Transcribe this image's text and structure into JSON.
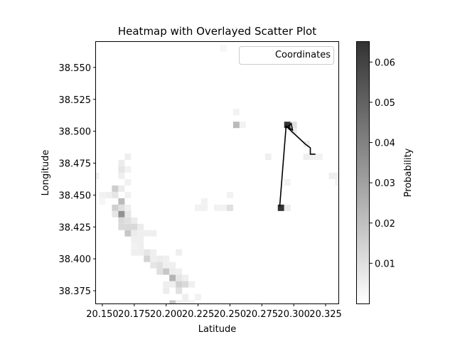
{
  "chart_data": {
    "type": "heatmap",
    "title": "Heatmap with Overlayed Scatter Plot",
    "xlabel": "Latitude",
    "ylabel": "Longitude",
    "xlim": [
      20.145,
      20.335
    ],
    "ylim": [
      38.365,
      38.57
    ],
    "x_ticks": [
      20.15,
      20.175,
      20.2,
      20.225,
      20.25,
      20.275,
      20.3,
      20.325
    ],
    "x_tick_labels": [
      "20.150",
      "20.175",
      "20.200",
      "20.225",
      "20.250",
      "20.275",
      "20.300",
      "20.325"
    ],
    "y_ticks": [
      38.375,
      38.4,
      38.425,
      38.45,
      38.475,
      38.5,
      38.525,
      38.55
    ],
    "y_tick_labels": [
      "38.375",
      "38.400",
      "38.425",
      "38.450",
      "38.475",
      "38.500",
      "38.525",
      "38.550"
    ],
    "cell_size": [
      0.005,
      0.005
    ],
    "cells": [
      [
        20.245,
        38.565,
        0.003
      ],
      [
        20.255,
        38.515,
        0.004
      ],
      [
        20.255,
        38.505,
        0.022
      ],
      [
        20.26,
        38.505,
        0.004
      ],
      [
        20.295,
        38.505,
        0.065
      ],
      [
        20.3,
        38.505,
        0.01
      ],
      [
        20.3,
        38.5,
        0.006
      ],
      [
        20.31,
        38.49,
        0.006
      ],
      [
        20.31,
        38.48,
        0.005
      ],
      [
        20.315,
        38.48,
        0.004
      ],
      [
        20.32,
        38.48,
        0.004
      ],
      [
        20.28,
        38.48,
        0.005
      ],
      [
        20.295,
        38.46,
        0.004
      ],
      [
        20.33,
        38.465,
        0.005
      ],
      [
        20.335,
        38.465,
        0.005
      ],
      [
        20.335,
        38.46,
        0.004
      ],
      [
        20.145,
        38.465,
        0.004
      ],
      [
        20.29,
        38.44,
        0.065
      ],
      [
        20.295,
        38.44,
        0.006
      ],
      [
        20.25,
        38.45,
        0.004
      ],
      [
        20.25,
        38.44,
        0.01
      ],
      [
        20.245,
        38.44,
        0.004
      ],
      [
        20.24,
        38.44,
        0.004
      ],
      [
        20.225,
        38.44,
        0.004
      ],
      [
        20.23,
        38.44,
        0.004
      ],
      [
        20.23,
        38.445,
        0.004
      ],
      [
        20.17,
        38.48,
        0.005
      ],
      [
        20.165,
        38.475,
        0.006
      ],
      [
        20.165,
        38.47,
        0.008
      ],
      [
        20.17,
        38.47,
        0.004
      ],
      [
        20.165,
        38.465,
        0.005
      ],
      [
        20.17,
        38.46,
        0.004
      ],
      [
        20.16,
        38.455,
        0.016
      ],
      [
        20.165,
        38.455,
        0.006
      ],
      [
        20.155,
        38.45,
        0.005
      ],
      [
        20.16,
        38.45,
        0.008
      ],
      [
        20.15,
        38.45,
        0.004
      ],
      [
        20.17,
        38.45,
        0.004
      ],
      [
        20.165,
        38.445,
        0.022
      ],
      [
        20.15,
        38.445,
        0.003
      ],
      [
        20.16,
        38.44,
        0.015
      ],
      [
        20.165,
        38.44,
        0.01
      ],
      [
        20.17,
        38.44,
        0.005
      ],
      [
        20.16,
        38.435,
        0.008
      ],
      [
        20.165,
        38.435,
        0.035
      ],
      [
        20.17,
        38.435,
        0.008
      ],
      [
        20.165,
        38.43,
        0.012
      ],
      [
        20.17,
        38.43,
        0.01
      ],
      [
        20.175,
        38.43,
        0.006
      ],
      [
        20.165,
        38.425,
        0.012
      ],
      [
        20.17,
        38.425,
        0.012
      ],
      [
        20.175,
        38.425,
        0.012
      ],
      [
        20.18,
        38.425,
        0.006
      ],
      [
        20.17,
        38.42,
        0.018
      ],
      [
        20.175,
        38.42,
        0.006
      ],
      [
        20.18,
        38.42,
        0.005
      ],
      [
        20.185,
        38.42,
        0.005
      ],
      [
        20.19,
        38.42,
        0.005
      ],
      [
        20.175,
        38.415,
        0.005
      ],
      [
        20.18,
        38.415,
        0.005
      ],
      [
        20.175,
        38.41,
        0.004
      ],
      [
        20.18,
        38.41,
        0.005
      ],
      [
        20.175,
        38.405,
        0.005
      ],
      [
        20.18,
        38.405,
        0.005
      ],
      [
        20.185,
        38.405,
        0.008
      ],
      [
        20.19,
        38.405,
        0.005
      ],
      [
        20.185,
        38.4,
        0.014
      ],
      [
        20.19,
        38.4,
        0.005
      ],
      [
        20.195,
        38.4,
        0.006
      ],
      [
        20.2,
        38.4,
        0.005
      ],
      [
        20.21,
        38.405,
        0.005
      ],
      [
        20.19,
        38.395,
        0.008
      ],
      [
        20.195,
        38.395,
        0.01
      ],
      [
        20.2,
        38.395,
        0.005
      ],
      [
        20.205,
        38.395,
        0.005
      ],
      [
        20.195,
        38.39,
        0.01
      ],
      [
        20.2,
        38.39,
        0.018
      ],
      [
        20.205,
        38.39,
        0.006
      ],
      [
        20.21,
        38.39,
        0.005
      ],
      [
        20.205,
        38.385,
        0.024
      ],
      [
        20.21,
        38.385,
        0.008
      ],
      [
        20.215,
        38.385,
        0.005
      ],
      [
        20.2,
        38.38,
        0.005
      ],
      [
        20.205,
        38.38,
        0.005
      ],
      [
        20.21,
        38.38,
        0.015
      ],
      [
        20.215,
        38.38,
        0.012
      ],
      [
        20.22,
        38.38,
        0.005
      ],
      [
        20.2,
        38.375,
        0.006
      ],
      [
        20.21,
        38.375,
        0.01
      ],
      [
        20.215,
        38.37,
        0.005
      ],
      [
        20.225,
        38.37,
        0.004
      ],
      [
        20.205,
        38.365,
        0.018
      ],
      [
        20.21,
        38.365,
        0.005
      ],
      [
        20.215,
        38.365,
        0.004
      ],
      [
        20.22,
        38.365,
        0.004
      ]
    ],
    "path": [
      [
        20.289,
        38.441
      ],
      [
        20.294,
        38.504
      ],
      [
        20.299,
        38.501
      ],
      [
        20.298,
        38.506
      ],
      [
        20.295,
        38.503
      ],
      [
        20.309,
        38.49
      ],
      [
        20.313,
        38.487
      ],
      [
        20.313,
        38.482
      ],
      [
        20.317,
        38.482
      ]
    ],
    "legend": {
      "label": "Coordinates",
      "position": "upper right"
    },
    "colorbar": {
      "label": "Probability",
      "min": 0.0,
      "max": 0.065,
      "ticks": [
        0.01,
        0.02,
        0.03,
        0.04,
        0.05,
        0.06
      ],
      "tick_labels": [
        "0.01",
        "0.02",
        "0.03",
        "0.04",
        "0.05",
        "0.06"
      ],
      "colormap": "Greys"
    },
    "colors": {
      "low": "#ffffff",
      "high": "#333333",
      "path": "#000000"
    }
  }
}
